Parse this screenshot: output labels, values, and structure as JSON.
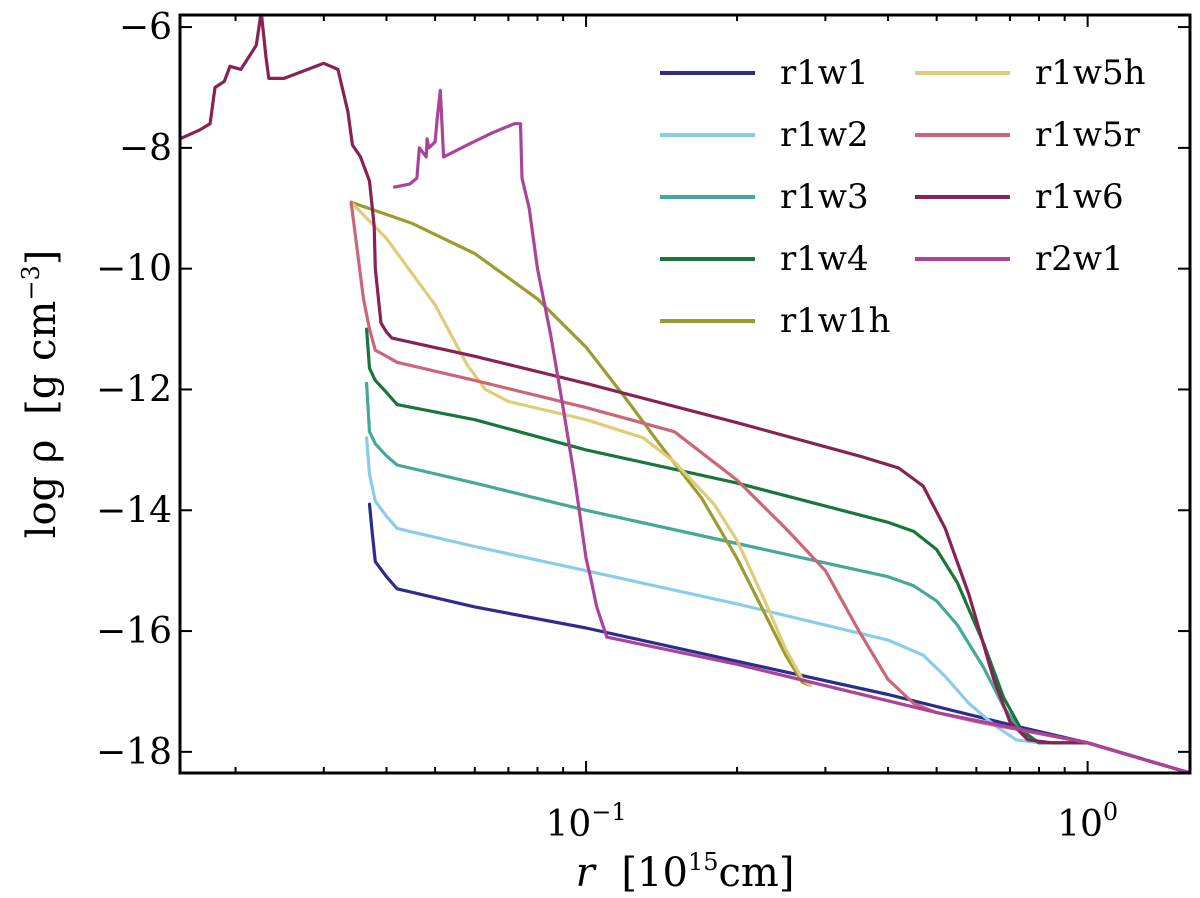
{
  "chart_data": {
    "type": "line",
    "xlabel": {
      "main": "r",
      "pre": "[10",
      "sup": "15",
      "post": "cm]"
    },
    "ylabel": {
      "main": "log ρ",
      "pre": "[g cm",
      "sup": "−3",
      "post": "]"
    },
    "x_scale": "log",
    "xlim": [
      0.0155,
      1.6
    ],
    "ylim": [
      -18.35,
      -5.8
    ],
    "xticks": [
      {
        "value": 0.1,
        "base": "10",
        "exp": "−1"
      },
      {
        "value": 1.0,
        "base": "10",
        "exp": "0"
      }
    ],
    "yticks": [
      {
        "value": -6,
        "label": "−6"
      },
      {
        "value": -8,
        "label": "−8"
      },
      {
        "value": -10,
        "label": "−10"
      },
      {
        "value": -12,
        "label": "−12"
      },
      {
        "value": -14,
        "label": "−14"
      },
      {
        "value": -16,
        "label": "−16"
      },
      {
        "value": -18,
        "label": "−18"
      }
    ],
    "legend_placement": "top-right",
    "grid": false,
    "series": [
      {
        "name": "r1w1",
        "color": "#2b2c8c",
        "points": [
          [
            0.037,
            -13.9
          ],
          [
            0.0375,
            -14.4
          ],
          [
            0.038,
            -14.85
          ],
          [
            0.04,
            -15.1
          ],
          [
            0.042,
            -15.3
          ],
          [
            0.06,
            -15.6
          ],
          [
            0.1,
            -15.95
          ],
          [
            0.2,
            -16.5
          ],
          [
            0.4,
            -17.05
          ],
          [
            0.7,
            -17.55
          ],
          [
            1.0,
            -17.85
          ],
          [
            1.6,
            -18.35
          ]
        ]
      },
      {
        "name": "r1w2",
        "color": "#89cde9",
        "points": [
          [
            0.0365,
            -12.8
          ],
          [
            0.037,
            -13.4
          ],
          [
            0.038,
            -13.85
          ],
          [
            0.04,
            -14.1
          ],
          [
            0.042,
            -14.3
          ],
          [
            0.06,
            -14.6
          ],
          [
            0.1,
            -15.0
          ],
          [
            0.2,
            -15.55
          ],
          [
            0.4,
            -16.15
          ],
          [
            0.47,
            -16.4
          ],
          [
            0.52,
            -16.75
          ],
          [
            0.58,
            -17.2
          ],
          [
            0.65,
            -17.55
          ],
          [
            0.72,
            -17.8
          ],
          [
            0.8,
            -17.85
          ],
          [
            1.0,
            -17.85
          ],
          [
            1.6,
            -18.35
          ]
        ]
      },
      {
        "name": "r1w3",
        "color": "#44a89a",
        "points": [
          [
            0.0365,
            -11.9
          ],
          [
            0.037,
            -12.7
          ],
          [
            0.038,
            -12.9
          ],
          [
            0.04,
            -13.1
          ],
          [
            0.042,
            -13.25
          ],
          [
            0.06,
            -13.55
          ],
          [
            0.1,
            -14.0
          ],
          [
            0.2,
            -14.55
          ],
          [
            0.4,
            -15.1
          ],
          [
            0.45,
            -15.25
          ],
          [
            0.5,
            -15.5
          ],
          [
            0.55,
            -15.9
          ],
          [
            0.62,
            -16.6
          ],
          [
            0.68,
            -17.25
          ],
          [
            0.74,
            -17.7
          ],
          [
            0.8,
            -17.85
          ],
          [
            1.0,
            -17.85
          ],
          [
            1.6,
            -18.35
          ]
        ]
      },
      {
        "name": "r1w4",
        "color": "#17773a",
        "points": [
          [
            0.0365,
            -11.0
          ],
          [
            0.037,
            -11.65
          ],
          [
            0.038,
            -11.85
          ],
          [
            0.04,
            -12.05
          ],
          [
            0.042,
            -12.25
          ],
          [
            0.06,
            -12.5
          ],
          [
            0.1,
            -13.0
          ],
          [
            0.2,
            -13.55
          ],
          [
            0.4,
            -14.2
          ],
          [
            0.45,
            -14.35
          ],
          [
            0.5,
            -14.65
          ],
          [
            0.55,
            -15.2
          ],
          [
            0.62,
            -16.2
          ],
          [
            0.68,
            -17.1
          ],
          [
            0.74,
            -17.65
          ],
          [
            0.8,
            -17.85
          ],
          [
            1.0,
            -17.85
          ],
          [
            1.6,
            -18.35
          ]
        ]
      },
      {
        "name": "r1w1h",
        "color": "#9a9b30",
        "points": [
          [
            0.034,
            -8.9
          ],
          [
            0.045,
            -9.25
          ],
          [
            0.06,
            -9.75
          ],
          [
            0.08,
            -10.5
          ],
          [
            0.1,
            -11.3
          ],
          [
            0.12,
            -12.15
          ],
          [
            0.14,
            -12.9
          ],
          [
            0.17,
            -13.8
          ],
          [
            0.2,
            -14.8
          ],
          [
            0.23,
            -15.8
          ],
          [
            0.25,
            -16.4
          ],
          [
            0.27,
            -16.85
          ],
          [
            0.28,
            -16.9
          ]
        ]
      },
      {
        "name": "r1w5h",
        "color": "#e0cb78",
        "points": [
          [
            0.034,
            -8.9
          ],
          [
            0.04,
            -9.5
          ],
          [
            0.05,
            -10.6
          ],
          [
            0.058,
            -11.6
          ],
          [
            0.063,
            -12.0
          ],
          [
            0.07,
            -12.2
          ],
          [
            0.1,
            -12.5
          ],
          [
            0.13,
            -12.8
          ],
          [
            0.15,
            -13.2
          ],
          [
            0.18,
            -13.9
          ],
          [
            0.2,
            -14.5
          ],
          [
            0.23,
            -15.6
          ],
          [
            0.25,
            -16.3
          ],
          [
            0.27,
            -16.8
          ],
          [
            0.28,
            -16.9
          ]
        ]
      },
      {
        "name": "r1w5r",
        "color": "#cc6677",
        "points": [
          [
            0.034,
            -8.9
          ],
          [
            0.036,
            -10.5
          ],
          [
            0.037,
            -11.0
          ],
          [
            0.038,
            -11.35
          ],
          [
            0.04,
            -11.45
          ],
          [
            0.042,
            -11.55
          ],
          [
            0.06,
            -11.85
          ],
          [
            0.1,
            -12.3
          ],
          [
            0.15,
            -12.7
          ],
          [
            0.2,
            -13.5
          ],
          [
            0.25,
            -14.3
          ],
          [
            0.3,
            -15.0
          ],
          [
            0.35,
            -16.0
          ],
          [
            0.4,
            -16.8
          ],
          [
            0.45,
            -17.2
          ],
          [
            0.5,
            -17.35
          ],
          [
            0.6,
            -17.5
          ],
          [
            1.0,
            -17.85
          ],
          [
            1.6,
            -18.35
          ]
        ]
      },
      {
        "name": "r1w6",
        "color": "#882255",
        "points": [
          [
            0.0155,
            -7.85
          ],
          [
            0.017,
            -7.7
          ],
          [
            0.0178,
            -7.6
          ],
          [
            0.0182,
            -7.0
          ],
          [
            0.019,
            -6.9
          ],
          [
            0.0195,
            -6.65
          ],
          [
            0.0205,
            -6.7
          ],
          [
            0.022,
            -6.3
          ],
          [
            0.0225,
            -5.75
          ],
          [
            0.023,
            -6.5
          ],
          [
            0.0233,
            -6.85
          ],
          [
            0.025,
            -6.85
          ],
          [
            0.03,
            -6.6
          ],
          [
            0.032,
            -6.7
          ],
          [
            0.0335,
            -7.4
          ],
          [
            0.0342,
            -7.95
          ],
          [
            0.0355,
            -8.15
          ],
          [
            0.037,
            -8.55
          ],
          [
            0.0378,
            -9.3
          ],
          [
            0.038,
            -10.0
          ],
          [
            0.039,
            -10.9
          ],
          [
            0.04,
            -11.05
          ],
          [
            0.041,
            -11.15
          ],
          [
            0.06,
            -11.45
          ],
          [
            0.1,
            -11.9
          ],
          [
            0.2,
            -12.55
          ],
          [
            0.35,
            -13.1
          ],
          [
            0.42,
            -13.3
          ],
          [
            0.47,
            -13.6
          ],
          [
            0.52,
            -14.3
          ],
          [
            0.58,
            -15.4
          ],
          [
            0.65,
            -16.8
          ],
          [
            0.7,
            -17.5
          ],
          [
            0.76,
            -17.8
          ],
          [
            0.85,
            -17.85
          ],
          [
            1.0,
            -17.85
          ],
          [
            1.6,
            -18.35
          ]
        ]
      },
      {
        "name": "r2w1",
        "color": "#aa4499",
        "points": [
          [
            0.0415,
            -8.65
          ],
          [
            0.0445,
            -8.6
          ],
          [
            0.046,
            -8.5
          ],
          [
            0.0465,
            -8.0
          ],
          [
            0.048,
            -8.15
          ],
          [
            0.0482,
            -7.85
          ],
          [
            0.0486,
            -8.0
          ],
          [
            0.05,
            -7.9
          ],
          [
            0.0505,
            -7.5
          ],
          [
            0.0512,
            -7.05
          ],
          [
            0.052,
            -8.15
          ],
          [
            0.058,
            -7.95
          ],
          [
            0.065,
            -7.75
          ],
          [
            0.072,
            -7.6
          ],
          [
            0.074,
            -7.6
          ],
          [
            0.0745,
            -8.5
          ],
          [
            0.077,
            -9.0
          ],
          [
            0.08,
            -10.0
          ],
          [
            0.085,
            -11.1
          ],
          [
            0.09,
            -12.3
          ],
          [
            0.095,
            -13.5
          ],
          [
            0.1,
            -14.8
          ],
          [
            0.102,
            -15.1
          ],
          [
            0.105,
            -15.6
          ],
          [
            0.11,
            -16.1
          ],
          [
            0.2,
            -16.55
          ],
          [
            0.5,
            -17.35
          ],
          [
            1.0,
            -17.85
          ],
          [
            1.6,
            -18.35
          ]
        ]
      }
    ]
  }
}
